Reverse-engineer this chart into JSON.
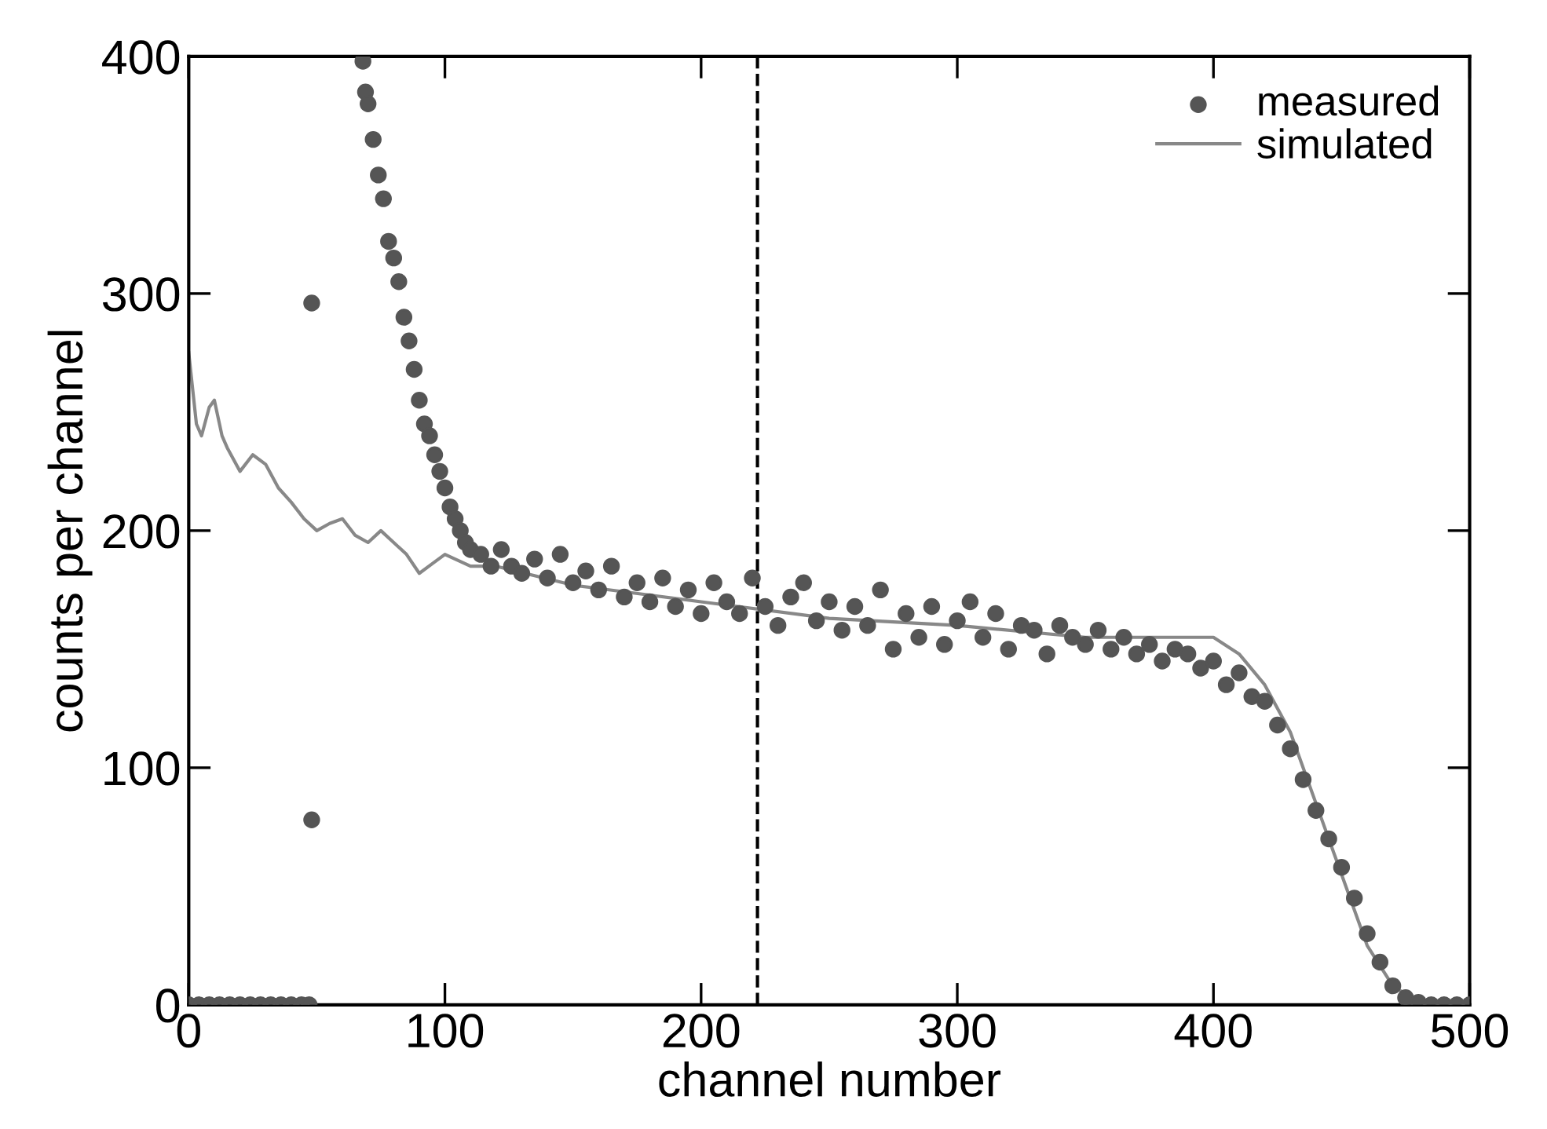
{
  "chart_data": {
    "type": "scatter",
    "xlabel": "channel number",
    "ylabel": "counts per channel",
    "xlim": [
      0,
      500
    ],
    "ylim": [
      0,
      400
    ],
    "xticks": [
      0,
      100,
      200,
      300,
      400,
      500
    ],
    "yticks": [
      0,
      100,
      200,
      300,
      400
    ],
    "grid": false,
    "legend": "top right",
    "ref_lines": [
      {
        "axis": "x",
        "value": 222,
        "color": "#000000",
        "line_style": "dashed"
      }
    ],
    "series": [
      {
        "name": "measured",
        "marker": "circle",
        "color": "#555555",
        "x": [
          0,
          4,
          8,
          12,
          16,
          20,
          24,
          28,
          32,
          36,
          40,
          44,
          47,
          48,
          48,
          68,
          69,
          70,
          72,
          74,
          76,
          78,
          80,
          82,
          84,
          86,
          88,
          90,
          92,
          94,
          96,
          98,
          100,
          102,
          104,
          106,
          108,
          110,
          114,
          118,
          122,
          126,
          130,
          135,
          140,
          145,
          150,
          155,
          160,
          165,
          170,
          175,
          180,
          185,
          190,
          195,
          200,
          205,
          210,
          215,
          220,
          225,
          230,
          235,
          240,
          245,
          250,
          255,
          260,
          265,
          270,
          275,
          280,
          285,
          290,
          295,
          300,
          305,
          310,
          315,
          320,
          325,
          330,
          335,
          340,
          345,
          350,
          355,
          360,
          365,
          370,
          375,
          380,
          385,
          390,
          395,
          400,
          405,
          410,
          415,
          420,
          425,
          430,
          435,
          440,
          445,
          450,
          455,
          460,
          465,
          470,
          475,
          480,
          485,
          490,
          495,
          500
        ],
        "values": [
          0,
          0,
          0,
          0,
          0,
          0,
          0,
          0,
          0,
          0,
          0,
          0,
          0,
          296,
          78,
          398,
          385,
          380,
          365,
          350,
          340,
          322,
          315,
          305,
          290,
          280,
          268,
          255,
          245,
          240,
          232,
          225,
          218,
          210,
          205,
          200,
          195,
          192,
          190,
          185,
          192,
          185,
          182,
          188,
          180,
          190,
          178,
          183,
          175,
          185,
          172,
          178,
          170,
          180,
          168,
          175,
          165,
          178,
          170,
          165,
          180,
          168,
          160,
          172,
          178,
          162,
          170,
          158,
          168,
          160,
          175,
          150,
          165,
          155,
          168,
          152,
          162,
          170,
          155,
          165,
          150,
          160,
          158,
          148,
          160,
          155,
          152,
          158,
          150,
          155,
          148,
          152,
          145,
          150,
          148,
          142,
          145,
          135,
          140,
          130,
          128,
          118,
          108,
          95,
          82,
          70,
          58,
          45,
          30,
          18,
          8,
          3,
          1,
          0,
          0,
          0,
          0
        ]
      },
      {
        "name": "simulated",
        "type": "line",
        "line_style": "solid",
        "color": "#888888",
        "x": [
          0,
          3,
          5,
          8,
          10,
          13,
          15,
          20,
          25,
          30,
          35,
          40,
          45,
          50,
          55,
          60,
          65,
          70,
          75,
          80,
          85,
          90,
          95,
          100,
          110,
          120,
          150,
          200,
          250,
          300,
          350,
          380,
          400,
          410,
          420,
          430,
          440,
          450,
          460,
          470,
          480,
          490,
          500
        ],
        "values": [
          275,
          245,
          240,
          252,
          255,
          240,
          235,
          225,
          232,
          228,
          218,
          212,
          205,
          200,
          203,
          205,
          198,
          195,
          200,
          195,
          190,
          182,
          186,
          190,
          185,
          185,
          177,
          170,
          163,
          160,
          155,
          155,
          155,
          148,
          135,
          115,
          85,
          55,
          25,
          8,
          1,
          0,
          0
        ]
      }
    ]
  }
}
